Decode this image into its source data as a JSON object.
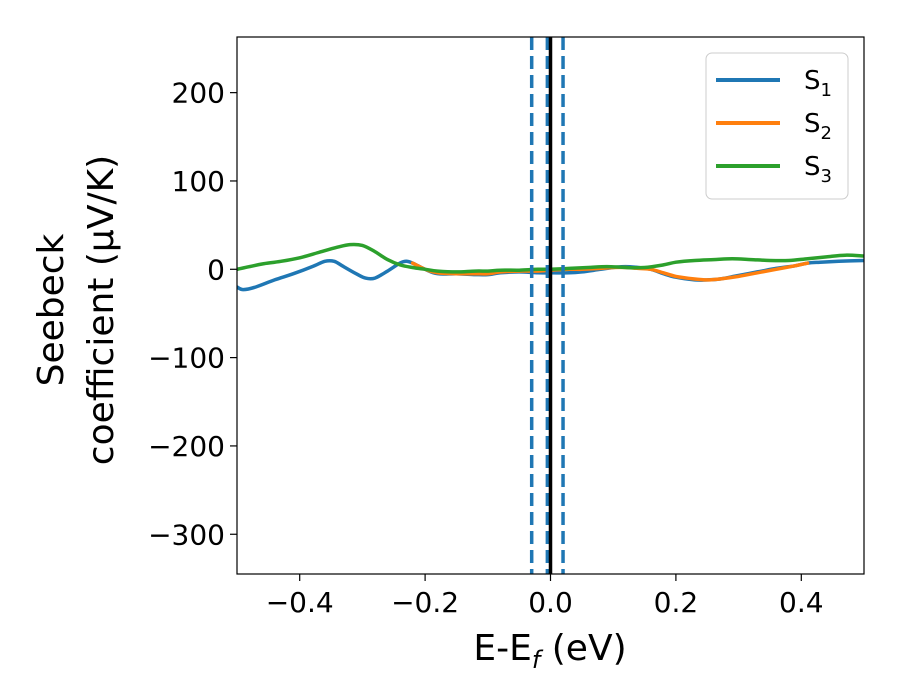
{
  "chart_data": {
    "type": "line",
    "xlabel": "E-E",
    "xlabel_sub": "f",
    "xlabel_unit": " (eV)",
    "ylabel_line1": "Seebeck",
    "ylabel_line2": "coefficient  (μV/K)",
    "xlim": [
      -0.5,
      0.5
    ],
    "ylim": [
      -345,
      263
    ],
    "x_ticks": [
      -0.4,
      -0.2,
      0.0,
      0.2,
      0.4
    ],
    "x_tick_labels": [
      "−0.4",
      "−0.2",
      "0.0",
      "0.2",
      "0.4"
    ],
    "y_ticks": [
      200,
      100,
      0,
      -100,
      -200,
      -300
    ],
    "y_tick_labels": [
      "200",
      "100",
      "0",
      "−100",
      "−200",
      "−300"
    ],
    "grid": false,
    "legend_position": "top-right",
    "vlines": [
      {
        "x": -0.03,
        "style": "dashed",
        "color": "#1f77b4"
      },
      {
        "x": -0.005,
        "style": "dashed",
        "color": "#1f77b4"
      },
      {
        "x": 0.02,
        "style": "dashed",
        "color": "#1f77b4"
      },
      {
        "x": 0.0,
        "style": "solid",
        "color": "#000000"
      }
    ],
    "series": [
      {
        "name": "S",
        "name_sub": "1",
        "color": "#1f77b4",
        "points": [
          [
            -0.5,
            -20
          ],
          [
            -0.49,
            -23
          ],
          [
            -0.47,
            -20
          ],
          [
            -0.44,
            -12
          ],
          [
            -0.41,
            -5
          ],
          [
            -0.38,
            3
          ],
          [
            -0.36,
            9
          ],
          [
            -0.345,
            9
          ],
          [
            -0.33,
            3
          ],
          [
            -0.31,
            -5
          ],
          [
            -0.295,
            -10
          ],
          [
            -0.28,
            -10
          ],
          [
            -0.26,
            -2
          ],
          [
            -0.24,
            7
          ],
          [
            -0.23,
            9
          ],
          [
            -0.22,
            7
          ],
          [
            -0.2,
            0
          ],
          [
            -0.18,
            -5
          ],
          [
            -0.15,
            -5
          ],
          [
            -0.12,
            -6
          ],
          [
            -0.1,
            -6
          ],
          [
            -0.08,
            -4
          ],
          [
            -0.05,
            -3
          ],
          [
            -0.02,
            -4
          ],
          [
            0.0,
            -4
          ],
          [
            0.03,
            -4
          ],
          [
            0.05,
            -3
          ],
          [
            0.08,
            0
          ],
          [
            0.1,
            2
          ],
          [
            0.12,
            3
          ],
          [
            0.14,
            2
          ],
          [
            0.16,
            0
          ],
          [
            0.18,
            -5
          ],
          [
            0.2,
            -9
          ],
          [
            0.23,
            -12
          ],
          [
            0.25,
            -12
          ],
          [
            0.27,
            -11
          ],
          [
            0.3,
            -7
          ],
          [
            0.33,
            -3
          ],
          [
            0.36,
            1
          ],
          [
            0.39,
            4
          ],
          [
            0.41,
            7
          ],
          [
            0.43,
            8
          ],
          [
            0.46,
            9
          ],
          [
            0.5,
            10
          ]
        ]
      },
      {
        "name": "S",
        "name_sub": "2",
        "color": "#ff7f0e",
        "points": [
          [
            -0.22,
            7
          ],
          [
            -0.2,
            0
          ],
          [
            -0.18,
            -4
          ],
          [
            -0.15,
            -5
          ],
          [
            -0.12,
            -5
          ],
          [
            -0.1,
            -5
          ],
          [
            -0.08,
            -3
          ],
          [
            -0.05,
            -2
          ],
          [
            -0.02,
            -2
          ],
          [
            0.0,
            -1
          ],
          [
            0.03,
            0
          ],
          [
            0.05,
            0
          ],
          [
            0.08,
            1
          ],
          [
            0.1,
            2
          ],
          [
            0.12,
            2
          ],
          [
            0.14,
            1
          ],
          [
            0.16,
            0
          ],
          [
            0.18,
            -4
          ],
          [
            0.2,
            -8
          ],
          [
            0.23,
            -11
          ],
          [
            0.25,
            -12
          ],
          [
            0.27,
            -11
          ],
          [
            0.3,
            -8
          ],
          [
            0.33,
            -4
          ],
          [
            0.36,
            0
          ],
          [
            0.39,
            4
          ],
          [
            0.41,
            7
          ]
        ]
      },
      {
        "name": "S",
        "name_sub": "3",
        "color": "#2ca02c",
        "points": [
          [
            -0.5,
            0
          ],
          [
            -0.48,
            3
          ],
          [
            -0.46,
            6
          ],
          [
            -0.43,
            9
          ],
          [
            -0.4,
            13
          ],
          [
            -0.37,
            19
          ],
          [
            -0.34,
            25
          ],
          [
            -0.32,
            28
          ],
          [
            -0.3,
            27
          ],
          [
            -0.28,
            20
          ],
          [
            -0.26,
            11
          ],
          [
            -0.24,
            5
          ],
          [
            -0.22,
            2
          ],
          [
            -0.2,
            0
          ],
          [
            -0.18,
            -2
          ],
          [
            -0.15,
            -3
          ],
          [
            -0.12,
            -2
          ],
          [
            -0.1,
            -2
          ],
          [
            -0.08,
            -1
          ],
          [
            -0.05,
            -1
          ],
          [
            -0.02,
            0
          ],
          [
            0.0,
            0
          ],
          [
            0.03,
            1
          ],
          [
            0.06,
            2
          ],
          [
            0.09,
            3
          ],
          [
            0.12,
            2
          ],
          [
            0.15,
            2
          ],
          [
            0.18,
            5
          ],
          [
            0.2,
            8
          ],
          [
            0.23,
            10
          ],
          [
            0.26,
            11
          ],
          [
            0.29,
            12
          ],
          [
            0.32,
            11
          ],
          [
            0.35,
            10
          ],
          [
            0.38,
            10
          ],
          [
            0.41,
            12
          ],
          [
            0.44,
            14
          ],
          [
            0.47,
            16
          ],
          [
            0.5,
            15
          ]
        ]
      }
    ]
  }
}
